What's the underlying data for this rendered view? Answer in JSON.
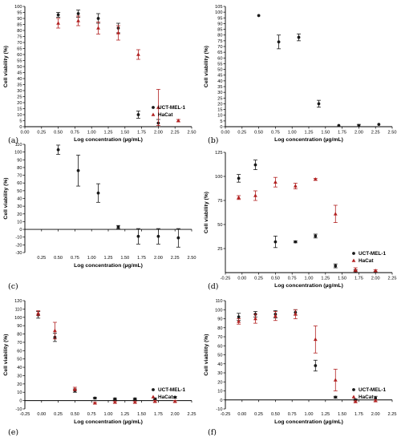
{
  "chart_data": [
    {
      "type": "scatter",
      "panel_label": "(a)",
      "xlabel": "Log concentration (µg/mL)",
      "ylabel": "Cell viability (%)",
      "xlim": [
        0,
        2.5
      ],
      "ylim": [
        0,
        100
      ],
      "xticks": [
        "0.00",
        "0.25",
        "0.50",
        "0.75",
        "1.00",
        "1.25",
        "1.50",
        "1.75",
        "2.00",
        "2.25",
        "2.50"
      ],
      "yticks": [
        "0",
        "5",
        "10",
        "15",
        "20",
        "25",
        "30",
        "35",
        "40",
        "45",
        "50",
        "55",
        "60",
        "65",
        "70",
        "75",
        "80",
        "85",
        "90",
        "95",
        "100"
      ],
      "legend": [
        "UCT-MEL-1",
        "HaCat"
      ],
      "series": [
        {
          "name": "UCT-MEL-1",
          "marker": "circle",
          "color": "#1a1a1a",
          "x": [
            0.5,
            0.8,
            1.1,
            1.4,
            1.7,
            2.0
          ],
          "y": [
            93,
            94,
            90,
            82,
            10,
            3
          ],
          "err": [
            2,
            3,
            4,
            4,
            3,
            3
          ]
        },
        {
          "name": "HaCat",
          "marker": "triangle",
          "color": "#b22222",
          "x": [
            0.5,
            0.8,
            1.1,
            1.4,
            1.7,
            2.0,
            2.3
          ],
          "y": [
            86,
            88,
            82,
            78,
            60,
            16,
            5
          ],
          "err": [
            4,
            4,
            5,
            6,
            4,
            15,
            1
          ]
        }
      ]
    },
    {
      "type": "scatter",
      "panel_label": "(b)",
      "xlabel": "Log concentration (µg/mL)",
      "ylabel": "Cell viability (%)",
      "xlim": [
        0,
        2.5
      ],
      "ylim": [
        0,
        105
      ],
      "xticks": [
        "0.00",
        "0.25",
        "0.50",
        "0.75",
        "1.00",
        "1.25",
        "1.50",
        "1.75",
        "2.00",
        "2.25",
        "2.50"
      ],
      "yticks": [
        "0",
        "5",
        "10",
        "15",
        "20",
        "25",
        "30",
        "35",
        "40",
        "45",
        "50",
        "55",
        "60",
        "65",
        "70",
        "75",
        "80",
        "85",
        "90",
        "95",
        "100",
        "105"
      ],
      "legend": [],
      "series": [
        {
          "name": "",
          "marker": "circle",
          "color": "#1a1a1a",
          "x": [
            0.5,
            0.8,
            1.1,
            1.4,
            1.7,
            2.0,
            2.3
          ],
          "y": [
            97,
            74,
            78,
            20,
            1,
            1,
            2
          ],
          "err": [
            0,
            6,
            3,
            3,
            0,
            1,
            0
          ]
        }
      ]
    },
    {
      "type": "scatter",
      "panel_label": "(c)",
      "xlabel": "Log concentration (µg/mL)",
      "ylabel": "Cell viability (%)",
      "xlim": [
        0,
        2.5
      ],
      "ylim": [
        -30,
        110
      ],
      "xticks": [
        "0.25",
        "0.50",
        "0.75",
        "1.00",
        "1.25",
        "1.50",
        "1.75",
        "2.00",
        "2.25",
        "2.50"
      ],
      "yticks": [
        "-30",
        "-20",
        "-10",
        "0",
        "10",
        "20",
        "30",
        "40",
        "50",
        "60",
        "70",
        "80",
        "90",
        "100",
        "110"
      ],
      "legend": [],
      "series": [
        {
          "name": "",
          "marker": "circle",
          "color": "#1a1a1a",
          "x": [
            0.5,
            0.8,
            1.1,
            1.4,
            1.7,
            2.0,
            2.3
          ],
          "y": [
            103,
            76,
            47,
            3,
            -9,
            -9,
            -11
          ],
          "err": [
            6,
            20,
            12,
            2,
            10,
            10,
            12
          ]
        }
      ]
    },
    {
      "type": "scatter",
      "panel_label": "(d)",
      "xlabel": "Log concentration (µg/mL)",
      "ylabel": "Cell viability (%)",
      "xlim": [
        -0.25,
        2.25
      ],
      "ylim": [
        0,
        125
      ],
      "xticks": [
        "-0.25",
        "0.00",
        "0.25",
        "0.50",
        "0.75",
        "1.00",
        "1.25",
        "1.50",
        "1.75",
        "2.00",
        "2.25"
      ],
      "yticks": [
        "25",
        "50",
        "75",
        "100",
        "125"
      ],
      "legend": [
        "UCT-MEL-1",
        "HaCat"
      ],
      "series": [
        {
          "name": "UCT-MEL-1",
          "marker": "circle",
          "color": "#1a1a1a",
          "x": [
            -0.05,
            0.2,
            0.5,
            0.8,
            1.1,
            1.4,
            1.7,
            2.0
          ],
          "y": [
            98,
            112,
            32,
            32,
            38,
            7,
            2,
            1
          ],
          "err": [
            4,
            5,
            6,
            1,
            2,
            2,
            1,
            0
          ]
        },
        {
          "name": "HaCat",
          "marker": "triangle",
          "color": "#b22222",
          "x": [
            -0.05,
            0.2,
            0.5,
            0.8,
            1.1,
            1.4,
            1.7,
            2.0
          ],
          "y": [
            78,
            80,
            94,
            90,
            97,
            61,
            3,
            2
          ],
          "err": [
            2,
            5,
            5,
            3,
            1,
            9,
            2,
            1
          ]
        }
      ]
    },
    {
      "type": "scatter",
      "panel_label": "(e)",
      "xlabel": "Log concentration (µg/mL)",
      "ylabel": "Cell viability (%)",
      "xlim": [
        -0.25,
        2.25
      ],
      "ylim": [
        -10,
        120
      ],
      "xticks": [
        "-0.25",
        "0.00",
        "0.25",
        "0.50",
        "0.75",
        "1.00",
        "1.25",
        "1.50",
        "1.75",
        "2.00",
        "2.25"
      ],
      "yticks": [
        "-10",
        "0",
        "10",
        "20",
        "30",
        "40",
        "50",
        "60",
        "70",
        "80",
        "90",
        "100",
        "110",
        "120"
      ],
      "legend": [
        "UCT-MEL-1",
        "HaCat"
      ],
      "series": [
        {
          "name": "UCT-MEL-1",
          "marker": "circle",
          "color": "#1a1a1a",
          "x": [
            -0.05,
            0.2,
            0.5,
            0.8,
            1.1,
            1.4,
            1.7,
            2.0
          ],
          "y": [
            103,
            76,
            12,
            3,
            2,
            2,
            2,
            4
          ],
          "err": [
            4,
            5,
            2,
            1,
            1,
            1,
            1,
            1
          ]
        },
        {
          "name": "HaCat",
          "marker": "triangle",
          "color": "#b22222",
          "x": [
            -0.05,
            0.2,
            0.5,
            0.8,
            1.1,
            1.4,
            1.7,
            2.0
          ],
          "y": [
            105,
            84,
            14,
            -3,
            -2,
            -2,
            -1,
            -1
          ],
          "err": [
            3,
            10,
            2,
            1,
            1,
            1,
            1,
            1
          ]
        }
      ]
    },
    {
      "type": "scatter",
      "panel_label": "(f)",
      "xlabel": "Log concentration (µg/mL)",
      "ylabel": "Cell viability (%)",
      "xlim": [
        -0.25,
        2.25
      ],
      "ylim": [
        -10,
        110
      ],
      "xticks": [
        "-0.25",
        "0.00",
        "0.25",
        "0.50",
        "0.75",
        "1.00",
        "1.25",
        "1.50",
        "1.75",
        "2.00",
        "2.25"
      ],
      "yticks": [
        "-10",
        "0",
        "10",
        "20",
        "30",
        "40",
        "50",
        "60",
        "70",
        "80",
        "90",
        "100",
        "110"
      ],
      "legend": [
        "UCT-MEL-1",
        "HaCat"
      ],
      "series": [
        {
          "name": "UCT-MEL-1",
          "marker": "circle",
          "color": "#1a1a1a",
          "x": [
            -0.05,
            0.2,
            0.5,
            0.8,
            1.1,
            1.4,
            1.7,
            2.0
          ],
          "y": [
            92,
            95,
            95,
            97,
            38,
            3,
            0,
            2
          ],
          "err": [
            4,
            3,
            4,
            3,
            6,
            1,
            1,
            2
          ]
        },
        {
          "name": "HaCat",
          "marker": "triangle",
          "color": "#b22222",
          "x": [
            -0.05,
            0.2,
            0.5,
            0.8,
            1.1,
            1.4,
            1.7,
            2.0
          ],
          "y": [
            87,
            90,
            93,
            95,
            67,
            22,
            -2,
            -1
          ],
          "err": [
            3,
            5,
            5,
            5,
            15,
            12,
            1,
            1
          ]
        }
      ]
    }
  ]
}
